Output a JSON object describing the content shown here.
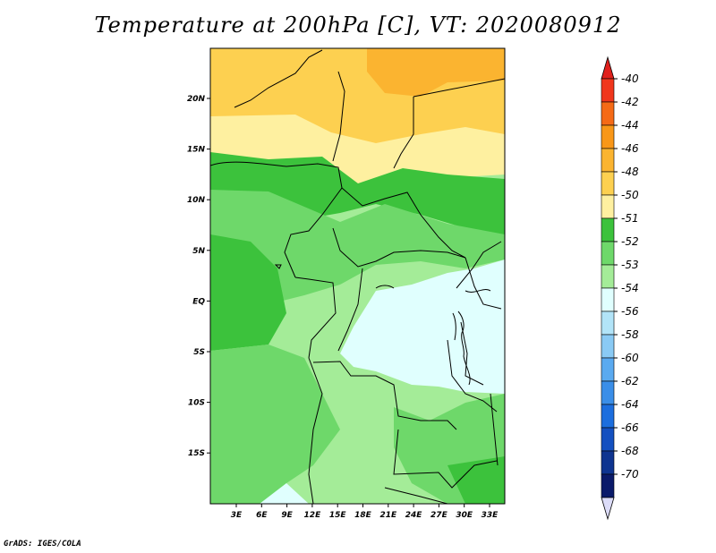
{
  "title": "Temperature at 200hPa [C], VT: 2020080912",
  "credit": "GrADS: IGES/COLA",
  "map": {
    "lat_labels": [
      "20N",
      "15N",
      "10N",
      "5N",
      "EQ",
      "5S",
      "10S",
      "15S"
    ],
    "lon_labels": [
      "3E",
      "6E",
      "9E",
      "12E",
      "15E",
      "18E",
      "21E",
      "24E",
      "27E",
      "30E",
      "33E"
    ]
  },
  "colorbar": {
    "labels": [
      "-40",
      "-42",
      "-44",
      "-46",
      "-48",
      "-50",
      "-51",
      "-52",
      "-53",
      "-54",
      "-56",
      "-58",
      "-60",
      "-62",
      "-64",
      "-66",
      "-68",
      "-70"
    ],
    "colors": [
      "#f0361c",
      "#f56a16",
      "#f99718",
      "#fbb430",
      "#fdd050",
      "#fef0a0",
      "#3cc23c",
      "#6ed86a",
      "#a4ec98",
      "#e0fffe",
      "#b2e4f8",
      "#8acaf4",
      "#5aaaf0",
      "#3a8ee8",
      "#1c6ede",
      "#1450c0",
      "#0e3490",
      "#0a1a6a"
    ],
    "top_color": "#e0201c",
    "bottom_color": "#dcdcf8"
  }
}
